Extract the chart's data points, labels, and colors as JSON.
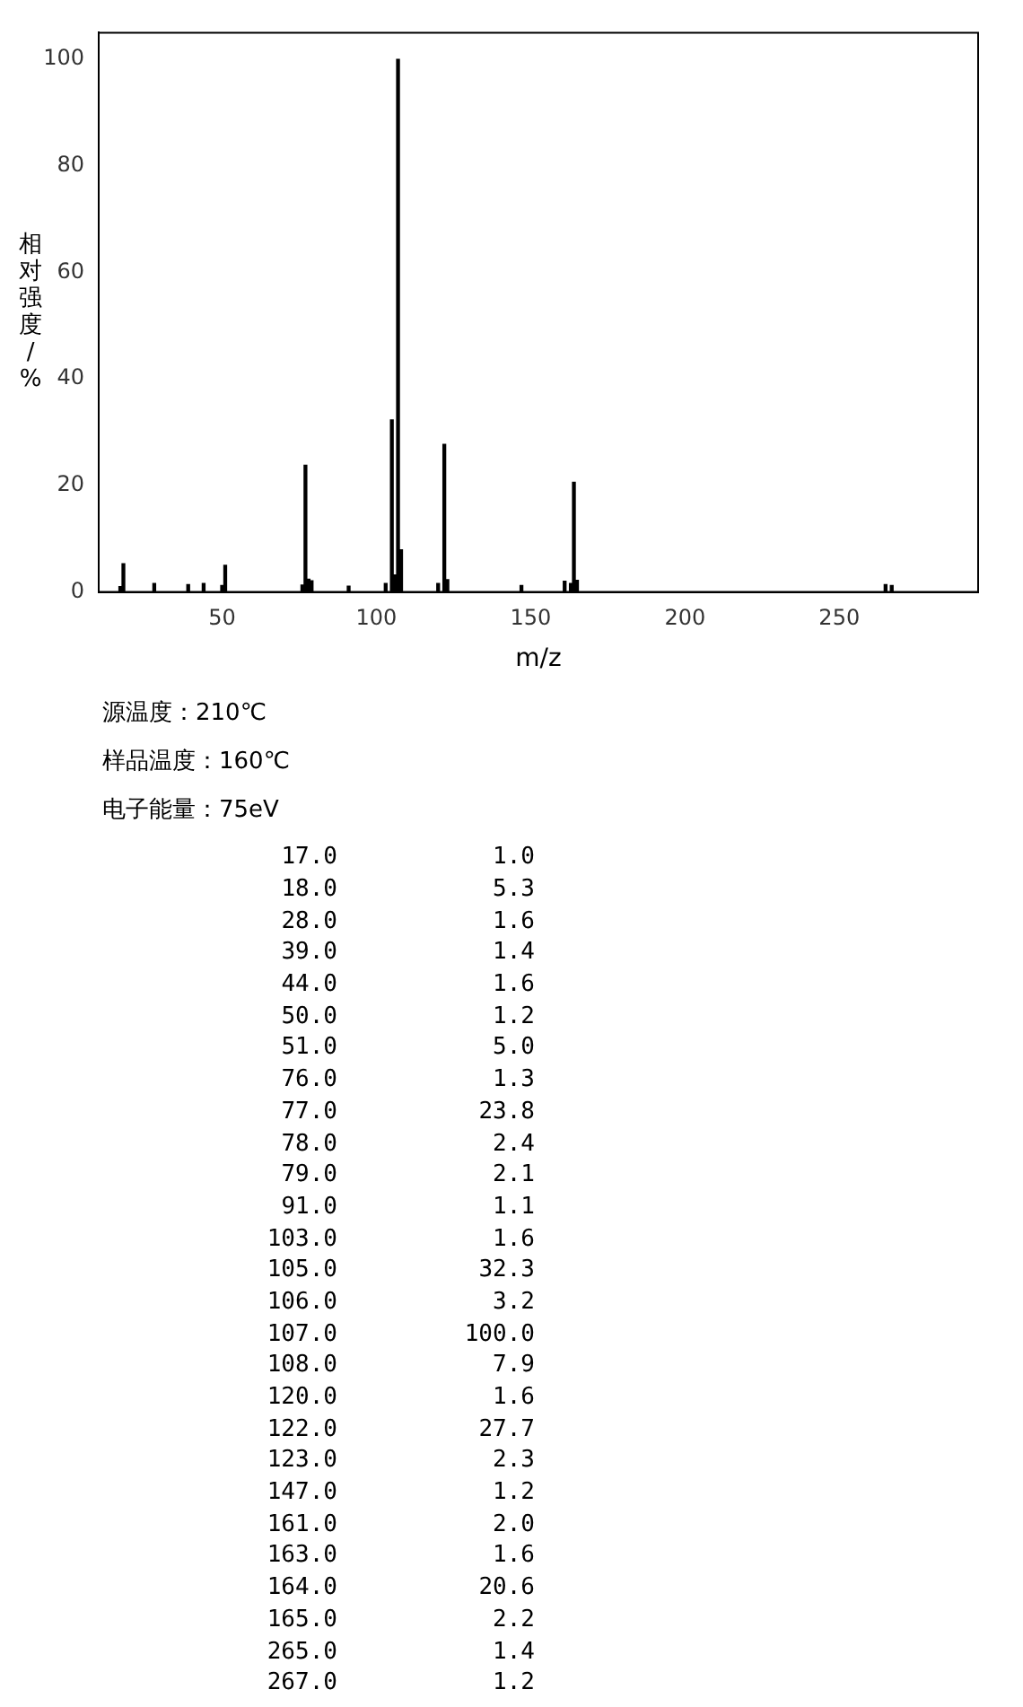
{
  "chart_data": [
    {
      "type": "bar",
      "xlabel": "m/z",
      "ylabel": "相对强度/%",
      "x": [
        17,
        18,
        28,
        39,
        44,
        50,
        51,
        76,
        77,
        78,
        79,
        91,
        103,
        105,
        106,
        107,
        108,
        120,
        122,
        123,
        147,
        161,
        163,
        164,
        165,
        265,
        267
      ],
      "values": [
        1.0,
        5.3,
        1.6,
        1.4,
        1.6,
        1.2,
        5.0,
        1.3,
        23.8,
        2.4,
        2.1,
        1.1,
        1.6,
        32.3,
        3.2,
        100.0,
        7.9,
        1.6,
        27.7,
        2.3,
        1.2,
        2.0,
        1.6,
        20.6,
        2.2,
        1.4,
        1.2
      ],
      "color": "#000000",
      "xlim": [
        10,
        295
      ],
      "xticks": [
        50,
        100,
        150,
        200,
        250
      ],
      "ylim": [
        0,
        105
      ],
      "yticks": [
        0,
        20,
        40,
        60,
        80,
        100
      ],
      "grid": false,
      "legend": false,
      "annotations": [
        "源温度：210℃",
        "样品温度：160℃",
        "电子能量：75eV"
      ]
    },
    {
      "type": "other",
      "categories": [
        "17.0",
        "18.0",
        "28.0",
        "39.0",
        "44.0",
        "50.0",
        "51.0",
        "76.0",
        "77.0",
        "78.0",
        "79.0",
        "91.0",
        "103.0",
        "105.0",
        "106.0",
        "107.0",
        "108.0",
        "120.0",
        "122.0",
        "123.0",
        "147.0",
        "161.0",
        "163.0",
        "164.0",
        "165.0",
        "265.0",
        "267.0"
      ],
      "value_labels": [
        "1.0",
        "5.3",
        "1.6",
        "1.4",
        "1.6",
        "1.2",
        "5.0",
        "1.3",
        "23.8",
        "2.4",
        "2.1",
        "1.1",
        "1.6",
        "32.3",
        "3.2",
        "100.0",
        "7.9",
        "1.6",
        "27.7",
        "2.3",
        "1.2",
        "2.0",
        "1.6",
        "20.6",
        "2.2",
        "1.4",
        "1.2"
      ]
    }
  ]
}
